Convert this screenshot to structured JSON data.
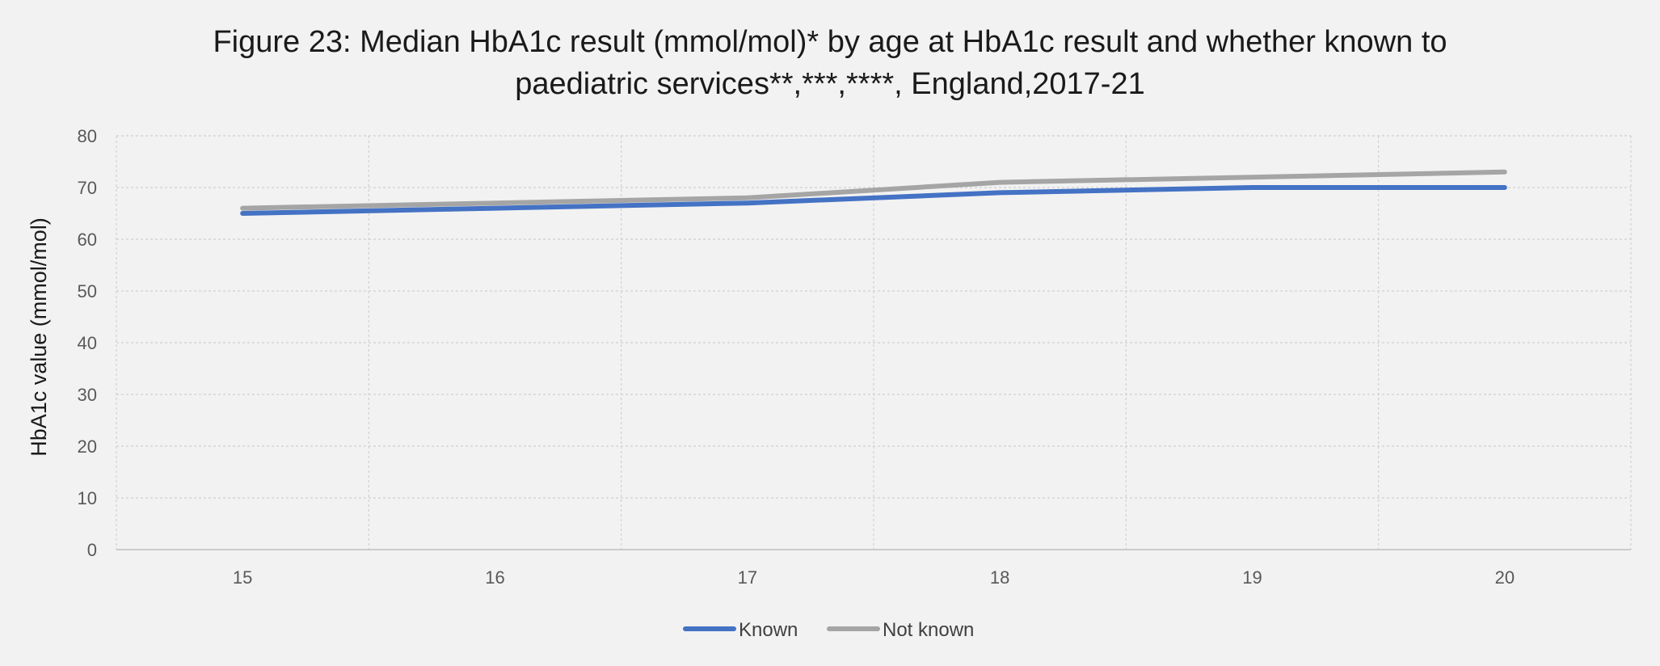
{
  "chart_data": {
    "type": "line",
    "title_lines": [
      "Figure 23: Median HbA1c result (mmol/mol)* by age at HbA1c result and whether known to",
      "paediatric services**,***,****, England,2017-21"
    ],
    "xlabel": "",
    "ylabel": "HbA1c value (mmol/mol)",
    "categories": [
      "15",
      "16",
      "17",
      "18",
      "19",
      "20"
    ],
    "yticks": [
      "0",
      "10",
      "20",
      "30",
      "40",
      "50",
      "60",
      "70",
      "80"
    ],
    "ylim": [
      0,
      80
    ],
    "grid": true,
    "legend_position": "bottom",
    "series": [
      {
        "name": "Known",
        "color": "#4472c4",
        "values": [
          65,
          66,
          67,
          69,
          70,
          70
        ]
      },
      {
        "name": "Not known",
        "color": "#a5a5a5",
        "values": [
          66,
          67,
          68,
          71,
          72,
          73
        ]
      }
    ]
  }
}
